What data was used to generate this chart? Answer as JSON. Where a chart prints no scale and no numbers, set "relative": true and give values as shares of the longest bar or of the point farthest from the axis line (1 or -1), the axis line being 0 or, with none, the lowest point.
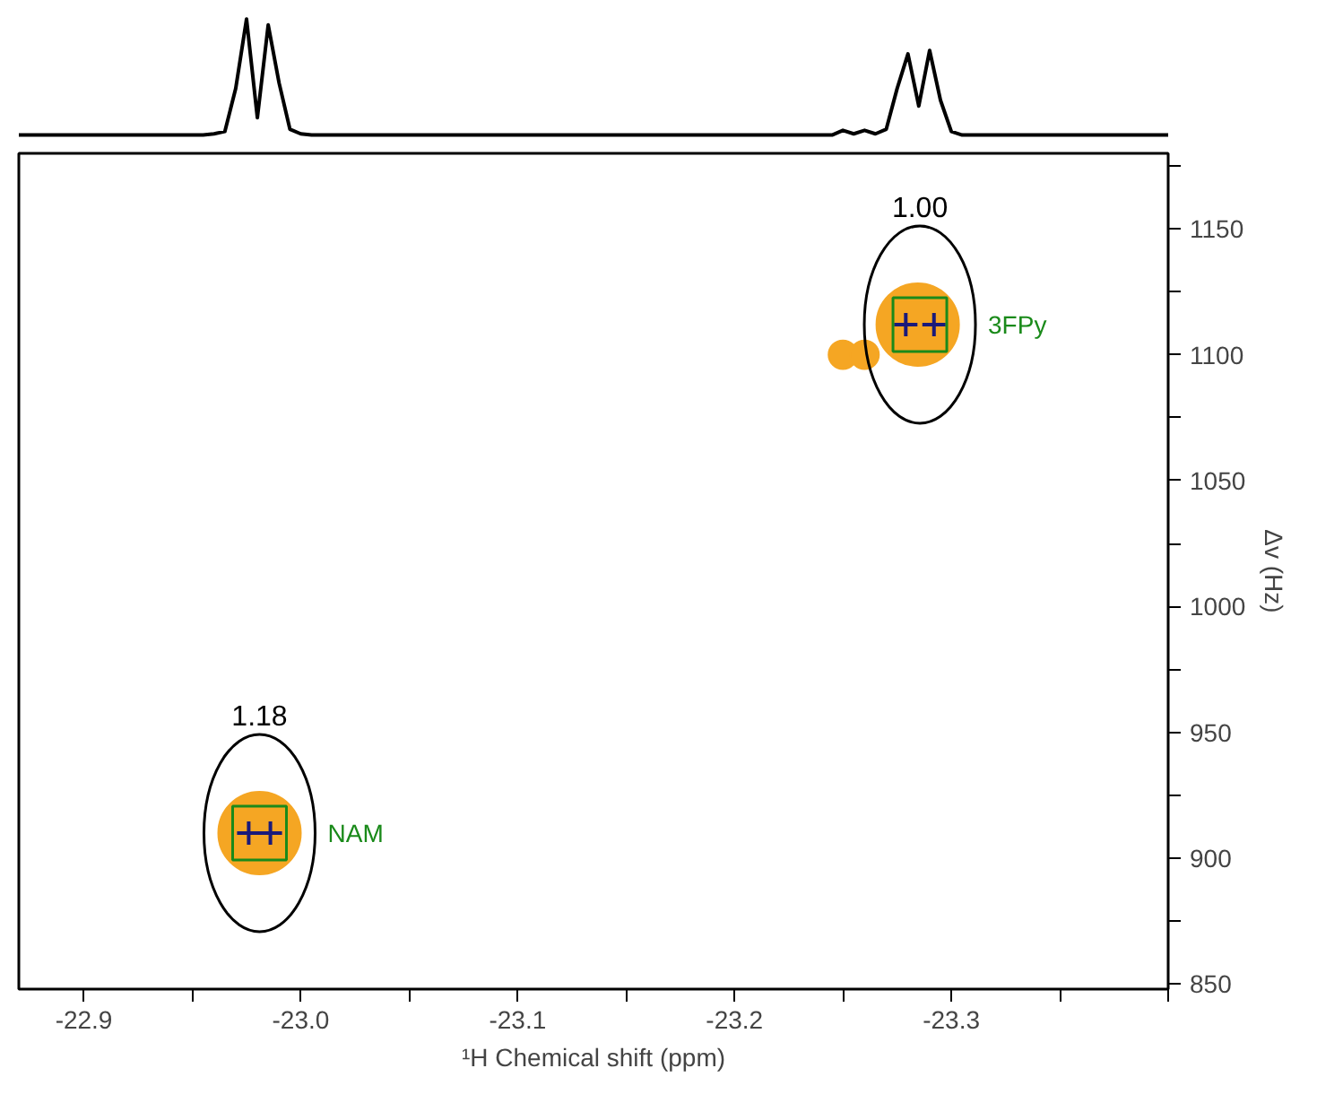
{
  "chart_data": [
    {
      "type": "line",
      "relative": true,
      "categories": [
        null,
        null,
        null,
        null,
        null,
        null,
        null,
        null,
        null,
        null,
        null,
        null,
        null,
        null,
        null,
        null,
        null,
        null,
        null,
        null,
        null,
        null,
        null,
        null,
        null,
        null,
        null,
        null,
        null,
        null,
        null,
        null,
        null,
        null,
        null,
        null,
        null,
        null,
        null,
        null,
        null,
        null,
        null,
        null,
        null,
        null,
        null,
        null,
        null,
        null,
        null,
        null,
        null,
        null,
        null,
        null,
        null,
        null,
        null,
        null,
        null,
        null,
        null,
        null,
        null,
        null,
        null,
        null,
        null,
        null,
        null,
        null,
        null,
        null,
        null,
        null,
        null,
        null,
        null,
        null,
        null,
        null,
        null,
        null,
        null,
        null,
        null,
        null,
        null,
        null,
        null,
        null,
        null,
        null,
        null,
        null,
        null,
        null,
        null,
        null,
        null,
        null,
        null,
        null,
        null,
        null,
        null
      ],
      "series": [
        {
          "color": "#000000",
          "values": [
            0,
            0,
            0,
            0,
            0,
            0,
            0,
            0,
            0,
            0,
            0,
            0,
            0,
            0,
            0,
            0,
            0,
            0,
            0.01,
            0.03,
            0.4,
            1.0,
            0.15,
            0.95,
            0.45,
            0.05,
            0.01,
            0,
            0,
            0,
            0,
            0,
            0,
            0,
            0,
            0,
            0,
            0,
            0,
            0,
            0,
            0,
            0,
            0,
            0,
            0,
            0,
            0,
            0,
            0,
            0,
            0,
            0,
            0,
            0,
            0,
            0,
            0,
            0,
            0,
            0,
            0,
            0,
            0,
            0,
            0,
            0,
            0,
            0,
            0,
            0,
            0,
            0,
            0,
            0,
            0,
            0.04,
            0.01,
            0.04,
            0.01,
            0.05,
            0.4,
            0.7,
            0.25,
            0.73,
            0.3,
            0.03,
            0,
            0,
            0,
            0,
            0,
            0,
            0,
            0,
            0,
            0,
            0,
            0,
            0,
            0,
            0,
            0,
            0,
            0,
            0,
            0
          ]
        }
      ]
    },
    {
      "type": "scatter",
      "xlabel": "¹H Chemical shift (ppm)",
      "ylabel": "Δv (Hz)",
      "xlim": [
        -22.87,
        -23.4
      ],
      "ylim": [
        848,
        1180
      ],
      "xticks": [
        -22.9,
        {
          "value": -22.95,
          "label": null
        },
        {
          "value": -23.0,
          "label": "-23.0"
        },
        {
          "value": -23.05,
          "label": null
        },
        -23.1,
        {
          "value": -23.15,
          "label": null
        },
        -23.2,
        {
          "value": -23.25,
          "label": null
        },
        -23.3,
        {
          "value": -23.35,
          "label": null
        },
        {
          "value": -23.4,
          "label": null
        }
      ],
      "yticks": [
        850,
        {
          "value": 875,
          "label": null
        },
        900,
        {
          "value": 925,
          "label": null
        },
        950,
        {
          "value": 975,
          "label": null
        },
        1000,
        {
          "value": 1025,
          "label": null
        },
        1050,
        {
          "value": 1075,
          "label": null
        },
        1100,
        {
          "value": 1125,
          "label": null
        },
        1150,
        {
          "value": 1175,
          "label": null
        }
      ],
      "grid": false,
      "series": [
        {
          "type": "bubble",
          "color": "#f5a623",
          "x": [
            -22.981,
            -23.2845,
            -23.25,
            -23.26
          ],
          "values": [
            910,
            1112,
            1100,
            1100
          ],
          "sizes": [
            1,
            1,
            0.12,
            0.12
          ]
        },
        {
          "type": "scatter",
          "marker": "cross",
          "color": "#1a1a7a",
          "x": [
            -22.976,
            -22.986,
            -23.279,
            -23.292
          ],
          "values": [
            910,
            910,
            1112,
            1112
          ]
        },
        {
          "type": "scatter",
          "marker": "square",
          "color": "#1a8a1a",
          "x": [
            -22.981,
            -23.2855
          ],
          "values": [
            910,
            1112
          ]
        }
      ],
      "annotations": [
        "1.18",
        "NAM",
        "1.00",
        "3FPy"
      ]
    }
  ]
}
